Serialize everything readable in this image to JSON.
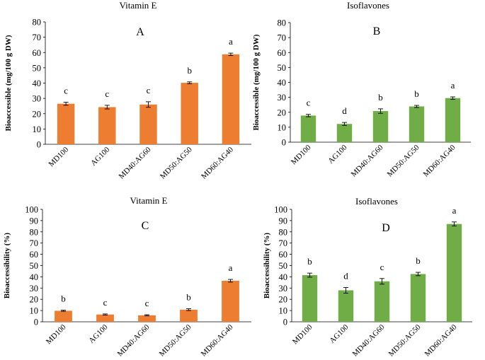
{
  "colors": {
    "orange": "#ED7D31",
    "green": "#70AD47"
  },
  "chart_data": [
    {
      "type": "bar",
      "title": "Vitamin E",
      "panel_label": "A",
      "ylabel": "Bioaccessible (mg/100 g DW)",
      "xlabel": "",
      "ylim": [
        0,
        80
      ],
      "yticks": [
        0,
        10,
        20,
        30,
        40,
        50,
        60,
        70,
        80
      ],
      "categories": [
        "MD100",
        "AG100",
        "MD40:AG60",
        "MD50:AG50",
        "MD60:AG40"
      ],
      "values": [
        26.5,
        24.3,
        26.0,
        40.2,
        58.8
      ],
      "errors": [
        1.0,
        1.2,
        1.8,
        0.6,
        0.8
      ],
      "letters": [
        "c",
        "c",
        "c",
        "b",
        "a"
      ],
      "color": "orange"
    },
    {
      "type": "bar",
      "title": "Isoflavones",
      "panel_label": "B",
      "ylabel": "Bioaccessible (mg/100 g DW)",
      "xlabel": "",
      "ylim": [
        0,
        80
      ],
      "yticks": [
        0,
        10,
        20,
        30,
        40,
        50,
        60,
        70,
        80
      ],
      "categories": [
        "MD100",
        "AG100",
        "MD40:AG60",
        "MD50:AG50",
        "MD60:AG40"
      ],
      "values": [
        17.8,
        12.2,
        20.8,
        23.9,
        29.5
      ],
      "errors": [
        0.8,
        1.0,
        1.5,
        0.7,
        0.8
      ],
      "letters": [
        "c",
        "d",
        "b",
        "b",
        "a"
      ],
      "color": "green"
    },
    {
      "type": "bar",
      "title": "Vitamin E",
      "panel_label": "C",
      "ylabel": "Bioaccessibility (%)",
      "xlabel": "",
      "ylim": [
        0,
        100
      ],
      "yticks": [
        0,
        10,
        20,
        30,
        40,
        50,
        60,
        70,
        80,
        90,
        100
      ],
      "categories": [
        "MD100",
        "AG100",
        "MD40:AG60",
        "MD50:AG50",
        "MD60:AG40"
      ],
      "values": [
        9.8,
        6.5,
        5.8,
        10.8,
        36.5
      ],
      "errors": [
        0.5,
        0.5,
        0.5,
        0.8,
        1.2
      ],
      "letters": [
        "b",
        "c",
        "c",
        "b",
        "a"
      ],
      "color": "orange"
    },
    {
      "type": "bar",
      "title": "Isoflavones",
      "panel_label": "D",
      "ylabel": "Bioaccessibility (%)",
      "xlabel": "",
      "ylim": [
        0,
        100
      ],
      "yticks": [
        0,
        10,
        20,
        30,
        40,
        50,
        60,
        70,
        80,
        90,
        100
      ],
      "categories": [
        "MD100",
        "AG100",
        "MD40:AG60",
        "MD50:AG50",
        "MD60:AG40"
      ],
      "values": [
        41.5,
        28.0,
        36.0,
        42.5,
        87.0
      ],
      "errors": [
        1.8,
        2.5,
        2.5,
        1.5,
        1.8
      ],
      "letters": [
        "b",
        "d",
        "c",
        "b",
        "a"
      ],
      "color": "green"
    }
  ]
}
